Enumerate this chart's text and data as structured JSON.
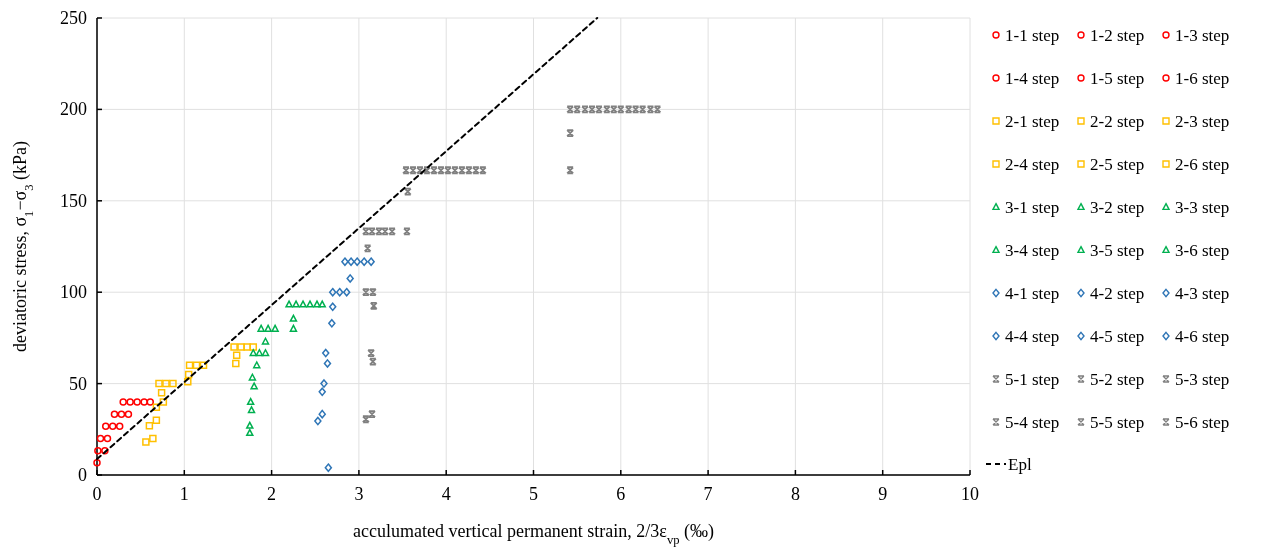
{
  "chart_data": {
    "type": "scatter",
    "xlabel": "acculumated vertical permanent strain, 2/3ε$_{vp}$ (‰)",
    "ylabel": "deviatoric stress, σ$_{1}$−σ$_{3}$ (kPa)",
    "xlim": [
      0,
      10
    ],
    "xticks": [
      0,
      1,
      2,
      3,
      4,
      5,
      6,
      7,
      8,
      9,
      10
    ],
    "ylim": [
      0,
      250
    ],
    "yticks": [
      0,
      50,
      100,
      150,
      200,
      250
    ],
    "grid": true,
    "legend": "right",
    "series": [
      {
        "name": "1-1 step",
        "color": "#ff0000",
        "marker": "circle",
        "x": [
          0
        ],
        "values": [
          6.7
        ]
      },
      {
        "name": "1-2 step",
        "color": "#ff0000",
        "marker": "circle",
        "x": [
          0.01,
          0.09
        ],
        "values": [
          13.3,
          13.3
        ]
      },
      {
        "name": "1-3 step",
        "color": "#ff0000",
        "marker": "circle",
        "x": [
          0.04,
          0.12
        ],
        "values": [
          20,
          20
        ]
      },
      {
        "name": "1-4 step",
        "color": "#ff0000",
        "marker": "circle",
        "x": [
          0.1,
          0.18,
          0.26
        ],
        "values": [
          26.7,
          26.7,
          26.7
        ]
      },
      {
        "name": "1-5 step",
        "color": "#ff0000",
        "marker": "circle",
        "x": [
          0.2,
          0.28,
          0.36
        ],
        "values": [
          33.3,
          33.3,
          33.3
        ]
      },
      {
        "name": "1-6 step",
        "color": "#ff0000",
        "marker": "circle",
        "x": [
          0.3,
          0.38,
          0.46,
          0.54,
          0.61
        ],
        "values": [
          40,
          40,
          40,
          40,
          40
        ]
      },
      {
        "name": "2-1 step",
        "color": "#ffc000",
        "marker": "square",
        "x": [
          0.56,
          0.64
        ],
        "values": [
          18,
          20
        ]
      },
      {
        "name": "2-2 step",
        "color": "#ffc000",
        "marker": "square",
        "x": [
          0.6,
          0.68
        ],
        "values": [
          27,
          30
        ]
      },
      {
        "name": "2-3 step",
        "color": "#ffc000",
        "marker": "square",
        "x": [
          0.68,
          0.76
        ],
        "values": [
          37,
          40
        ]
      },
      {
        "name": "2-4 step",
        "color": "#ffc000",
        "marker": "square",
        "x": [
          0.74,
          0.71,
          0.79,
          0.87
        ],
        "values": [
          45,
          50,
          50,
          50
        ]
      },
      {
        "name": "2-5 step",
        "color": "#ffc000",
        "marker": "square",
        "x": [
          1.04,
          1.05,
          1.06,
          1.14,
          1.22
        ],
        "values": [
          51,
          55,
          60,
          60,
          60
        ]
      },
      {
        "name": "2-6 step",
        "color": "#ffc000",
        "marker": "square",
        "x": [
          1.59,
          1.6,
          1.57,
          1.65,
          1.72,
          1.79
        ],
        "values": [
          61,
          65.5,
          70,
          70,
          70,
          70
        ]
      },
      {
        "name": "3-1 step",
        "color": "#00b050",
        "marker": "triangle",
        "x": [
          1.75,
          1.75
        ],
        "values": [
          23,
          27
        ]
      },
      {
        "name": "3-2 step",
        "color": "#00b050",
        "marker": "triangle",
        "x": [
          1.77,
          1.76
        ],
        "values": [
          35.5,
          40
        ]
      },
      {
        "name": "3-3 step",
        "color": "#00b050",
        "marker": "triangle",
        "x": [
          1.8,
          1.78
        ],
        "values": [
          48.5,
          53.3
        ]
      },
      {
        "name": "3-4 step",
        "color": "#00b050",
        "marker": "triangle",
        "x": [
          1.83,
          1.79,
          1.86
        ],
        "values": [
          60,
          66.7,
          66.7
        ]
      },
      {
        "name": "3-5 step",
        "color": "#00b050",
        "marker": "triangle",
        "x": [
          1.93,
          1.93,
          1.88,
          1.96,
          2.04
        ],
        "values": [
          66.7,
          73,
          80,
          80,
          80
        ]
      },
      {
        "name": "3-6 step",
        "color": "#00b050",
        "marker": "triangle",
        "x": [
          2.25,
          2.25,
          2.2,
          2.28,
          2.36,
          2.44,
          2.52,
          2.58
        ],
        "values": [
          80,
          85.5,
          93.3,
          93.3,
          93.3,
          93.3,
          93.3,
          93.3
        ]
      },
      {
        "name": "4-1 step",
        "color": "#2e75b6",
        "marker": "diamond",
        "x": [
          2.65
        ],
        "values": [
          4
        ]
      },
      {
        "name": "4-2 step",
        "color": "#2e75b6",
        "marker": "diamond",
        "x": [
          2.53,
          2.58
        ],
        "values": [
          29.5,
          33.3
        ]
      },
      {
        "name": "4-3 step",
        "color": "#2e75b6",
        "marker": "diamond",
        "x": [
          2.58,
          2.6
        ],
        "values": [
          45.5,
          50
        ]
      },
      {
        "name": "4-4 step",
        "color": "#2e75b6",
        "marker": "diamond",
        "x": [
          2.64,
          2.62
        ],
        "values": [
          61,
          66.7
        ]
      },
      {
        "name": "4-5 step",
        "color": "#2e75b6",
        "marker": "diamond",
        "x": [
          2.69,
          2.7,
          2.86,
          2.7,
          2.78
        ],
        "values": [
          83,
          92,
          100,
          100,
          100
        ]
      },
      {
        "name": "4-6 step",
        "color": "#2e75b6",
        "marker": "diamond",
        "x": [
          2.9,
          2.84,
          2.91,
          2.98,
          3.06,
          3.14
        ],
        "values": [
          107.5,
          116.7,
          116.7,
          116.7,
          116.7,
          116.7
        ]
      },
      {
        "name": "5-1 step",
        "color": "#808080",
        "marker": "cross",
        "x": [
          3.08,
          3.15
        ],
        "values": [
          30.5,
          33.3
        ]
      },
      {
        "name": "5-2 step",
        "color": "#808080",
        "marker": "cross",
        "x": [
          3.16,
          3.14
        ],
        "values": [
          62,
          66.7
        ]
      },
      {
        "name": "5-3 step",
        "color": "#808080",
        "marker": "cross",
        "x": [
          3.17,
          3.08,
          3.16
        ],
        "values": [
          92.5,
          100,
          100
        ]
      },
      {
        "name": "5-4 step",
        "color": "#808080",
        "marker": "cross",
        "x": [
          3.1,
          3.08,
          3.15,
          3.23,
          3.3,
          3.38
        ],
        "values": [
          124,
          133.3,
          133.3,
          133.3,
          133.3,
          133.3
        ]
      },
      {
        "name": "5-5 step",
        "color": "#808080",
        "marker": "cross",
        "x": [
          3.55,
          3.56,
          3.54,
          3.62,
          3.7,
          3.78,
          3.86,
          3.94,
          4.02,
          4.1,
          4.18,
          4.26,
          4.34,
          4.42
        ],
        "values": [
          133.3,
          155,
          166.7,
          166.7,
          166.7,
          166.7,
          166.7,
          166.7,
          166.7,
          166.7,
          166.7,
          166.7,
          166.7,
          166.7
        ]
      },
      {
        "name": "5-6 step",
        "color": "#808080",
        "marker": "cross",
        "x": [
          5.42,
          5.42,
          5.42,
          5.5,
          5.59,
          5.67,
          5.75,
          5.84,
          5.92,
          6.0,
          6.09,
          6.17,
          6.25,
          6.34,
          6.42
        ],
        "values": [
          166.7,
          187,
          200,
          200,
          200,
          200,
          200,
          200,
          200,
          200,
          200,
          200,
          200,
          200,
          200
        ]
      },
      {
        "name": "Epl",
        "type": "line",
        "color": "#000000",
        "marker": "none",
        "line_style": "dashed",
        "x": [
          0,
          5.73
        ],
        "values": [
          8.7,
          250
        ]
      }
    ]
  }
}
